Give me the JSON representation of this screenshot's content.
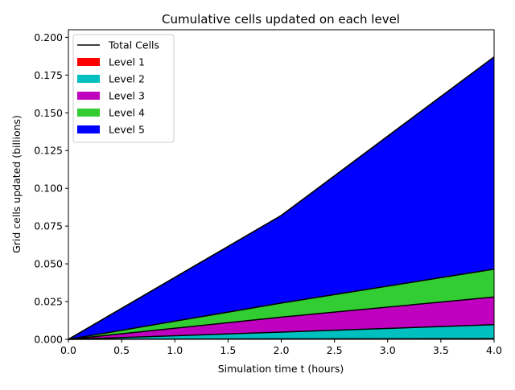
{
  "chart_data": {
    "type": "area",
    "title": "Cumulative cells updated on each level",
    "xlabel": "Simulation time t (hours)",
    "ylabel": "Grid cells updated (billions)",
    "xlim": [
      0,
      4
    ],
    "ylim": [
      0,
      0.205
    ],
    "xticks": [
      "0.0",
      "0.5",
      "1.0",
      "1.5",
      "2.0",
      "2.5",
      "3.0",
      "3.5",
      "4.0"
    ],
    "yticks": [
      "0.000",
      "0.025",
      "0.050",
      "0.075",
      "0.100",
      "0.125",
      "0.150",
      "0.175",
      "0.200"
    ],
    "stacked": true,
    "x": [
      0,
      2,
      4
    ],
    "series": [
      {
        "name": "Level 1",
        "color": "#ff0000",
        "values": [
          0,
          0.0003,
          0.0005
        ]
      },
      {
        "name": "Level 2",
        "color": "#00bfbf",
        "values": [
          0,
          0.0045,
          0.0092
        ]
      },
      {
        "name": "Level 3",
        "color": "#bf00bf",
        "values": [
          0,
          0.0099,
          0.0183
        ]
      },
      {
        "name": "Level 4",
        "color": "#32cd32",
        "values": [
          0,
          0.0093,
          0.0185
        ]
      },
      {
        "name": "Level 5",
        "color": "#0000ff",
        "values": [
          0,
          0.058,
          0.1405
        ]
      }
    ],
    "total_line": {
      "name": "Total Cells",
      "color": "#000000",
      "values": [
        0,
        0.082,
        0.187
      ]
    },
    "legend_position": "upper-left",
    "grid": false
  }
}
